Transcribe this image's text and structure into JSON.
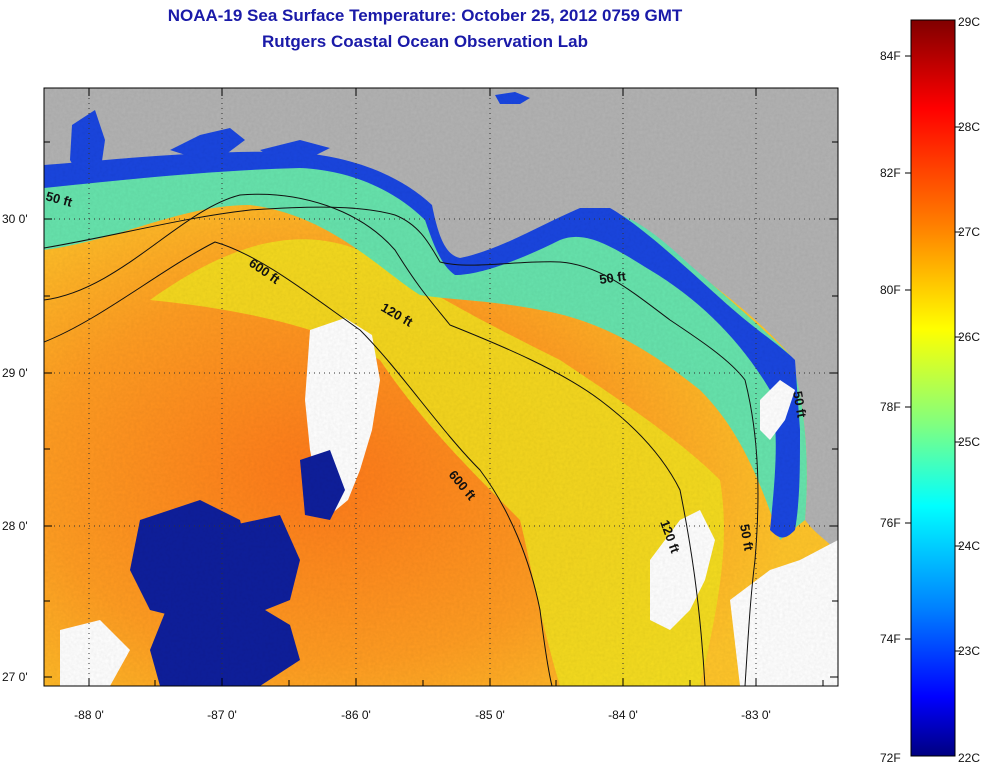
{
  "title": {
    "line1": "NOAA-19 Sea Surface Temperature:  October 25, 2012 0759 GMT",
    "line2": "Rutgers Coastal Ocean Observation Lab"
  },
  "map": {
    "lat_ticks": [
      "30 0'",
      "29 0'",
      "28 0'",
      "27 0'"
    ],
    "lon_ticks": [
      "-88 0'",
      "-87 0'",
      "-86 0'",
      "-85 0'",
      "-84 0'",
      "-83 0'"
    ],
    "contour_labels": [
      "50 ft",
      "600 ft",
      "120 ft",
      "50 ft",
      "600 ft",
      "120 ft",
      "50 ft",
      "50 ft"
    ],
    "colors": {
      "land": "#b3b3b3",
      "cloud": "#ffffff",
      "contour": "#111111"
    }
  },
  "colorbar": {
    "celsius_labels": [
      "29C",
      "28C",
      "27C",
      "26C",
      "25C",
      "24C",
      "23C",
      "22C"
    ],
    "fahrenheit_labels": [
      "84F",
      "82F",
      "80F",
      "78F",
      "76F",
      "74F",
      "72F"
    ]
  }
}
